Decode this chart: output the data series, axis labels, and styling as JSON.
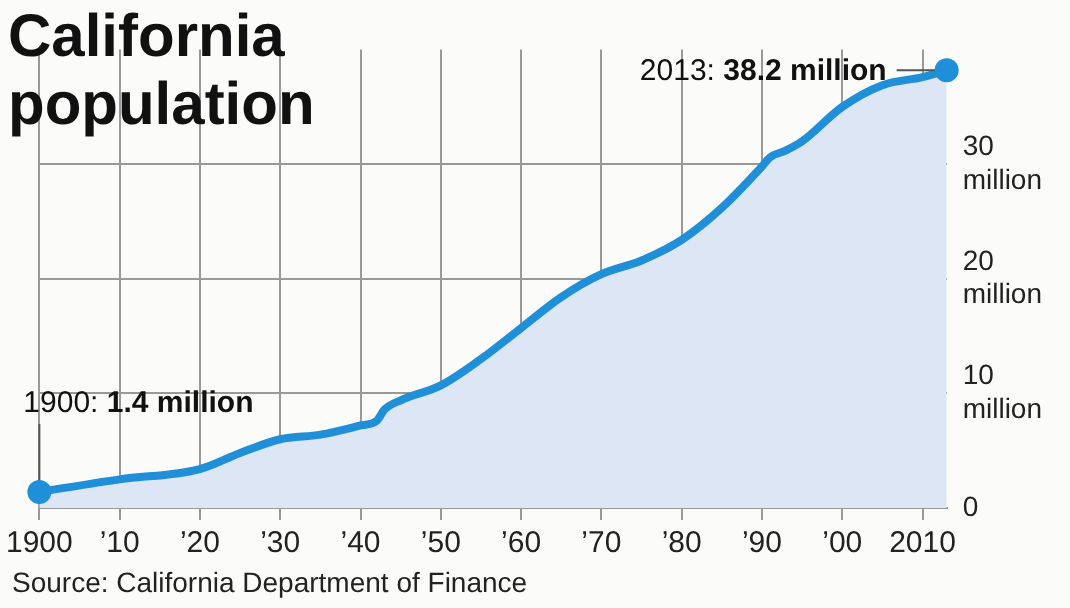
{
  "chart_data": {
    "type": "area",
    "title": "California population",
    "x": [
      1900,
      1910,
      1920,
      1925,
      1930,
      1935,
      1940,
      1942,
      1943,
      1945,
      1950,
      1955,
      1960,
      1965,
      1970,
      1975,
      1980,
      1985,
      1990,
      1991,
      1993,
      1995,
      2000,
      2005,
      2010,
      2013
    ],
    "series": [
      {
        "color": "#1e8fd8",
        "values": [
          1.4,
          2.5,
          3.4,
          4.8,
          6.0,
          6.4,
          7.2,
          7.6,
          8.6,
          9.4,
          10.7,
          13.0,
          15.7,
          18.4,
          20.4,
          21.6,
          23.4,
          26.2,
          29.8,
          30.6,
          31.2,
          32.0,
          35.0,
          36.9,
          37.6,
          38.2
        ]
      }
    ],
    "xlim": [
      1900,
      2013
    ],
    "ylim": [
      0,
      40
    ],
    "xticks": [
      1900,
      {
        "value": 1910,
        "label": "’10"
      },
      {
        "value": 1920,
        "label": "’20"
      },
      {
        "value": 1930,
        "label": "’30"
      },
      {
        "value": 1940,
        "label": "’40"
      },
      {
        "value": 1950,
        "label": "’50"
      },
      {
        "value": 1960,
        "label": "’60"
      },
      {
        "value": 1970,
        "label": "’70"
      },
      {
        "value": 1980,
        "label": "’80"
      },
      {
        "value": 1990,
        "label": "’90"
      },
      {
        "value": 2000,
        "label": "’00"
      },
      2010
    ],
    "yticks": [
      0,
      {
        "value": 10,
        "label": "10 million"
      },
      {
        "value": 20,
        "label": "20 million"
      },
      {
        "value": 30,
        "label": "30 million"
      }
    ],
    "grid": true,
    "legend": false,
    "annotations": [
      {
        "text": "2013: 38.2 million",
        "x": 2013,
        "y": 38.2
      },
      {
        "text": "1900: 1.4 million",
        "x": 1900,
        "y": 1.4
      },
      "Source: California Department of Finance"
    ]
  }
}
